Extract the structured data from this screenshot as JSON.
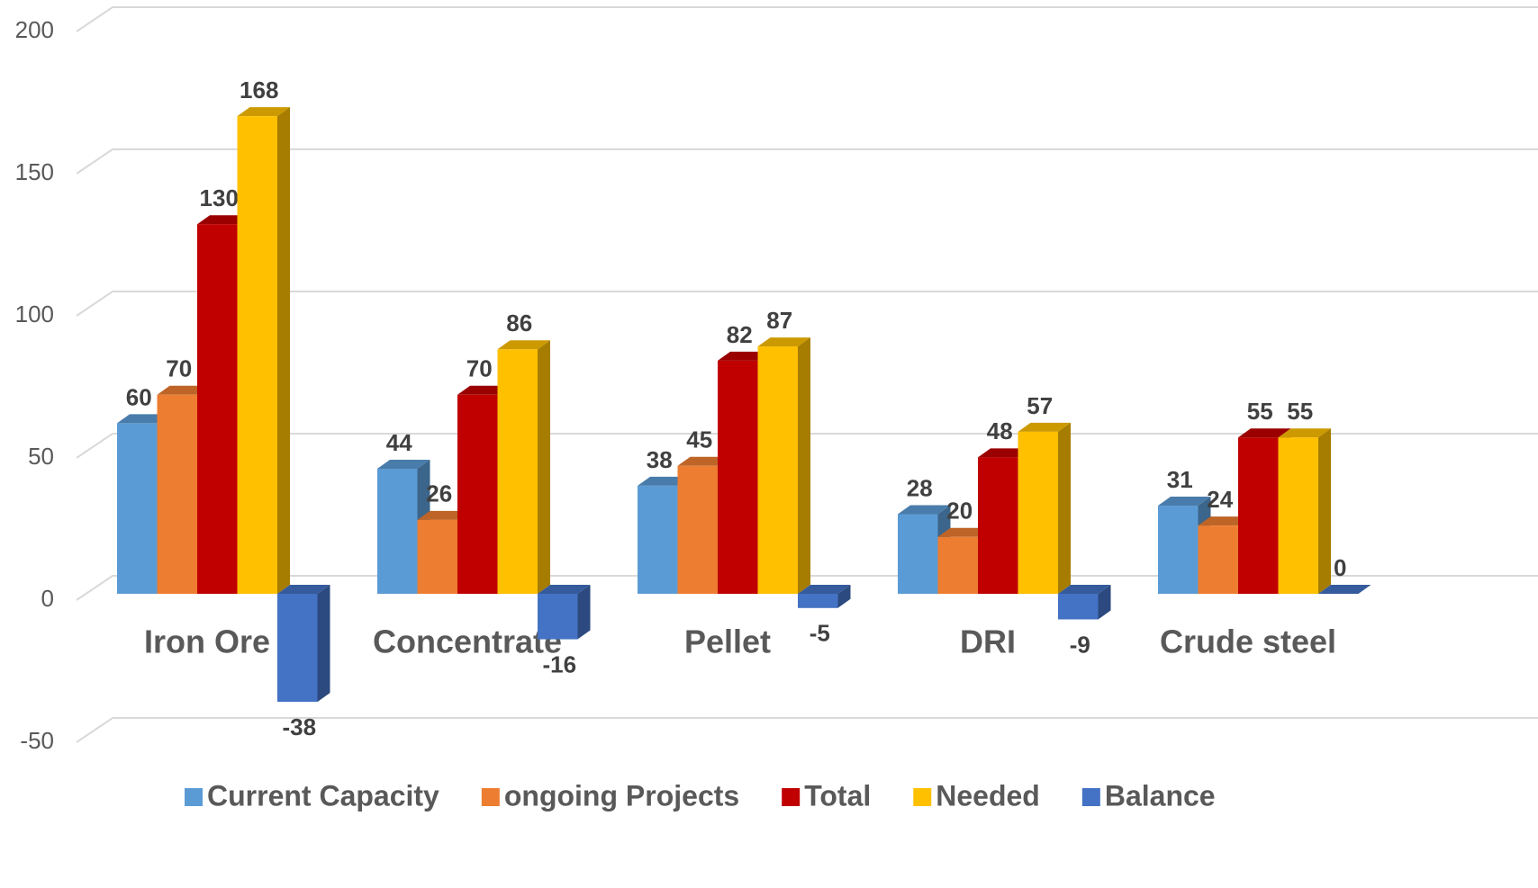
{
  "chart_data": {
    "type": "bar3d",
    "categories": [
      "Iron Ore",
      "Concentrate",
      "Pellet",
      "DRI",
      "Crude steel"
    ],
    "series": [
      {
        "name": "Current Capacity",
        "color": "#5b9bd5",
        "values": [
          60,
          44,
          38,
          28,
          31
        ]
      },
      {
        "name": "ongoing Projects",
        "color": "#ed7d31",
        "values": [
          70,
          26,
          45,
          20,
          24
        ]
      },
      {
        "name": "Total",
        "color": "#c00000",
        "values": [
          130,
          70,
          82,
          48,
          55
        ]
      },
      {
        "name": "Needed",
        "color": "#ffc000",
        "values": [
          168,
          86,
          87,
          57,
          55
        ]
      },
      {
        "name": "Balance",
        "color": "#4472c4",
        "values": [
          -38,
          -16,
          -5,
          -9,
          0
        ]
      }
    ],
    "ylim": [
      -50,
      200
    ],
    "yticks": [
      -50,
      0,
      50,
      100,
      150,
      200
    ],
    "grid": true,
    "legend": "bottom"
  }
}
